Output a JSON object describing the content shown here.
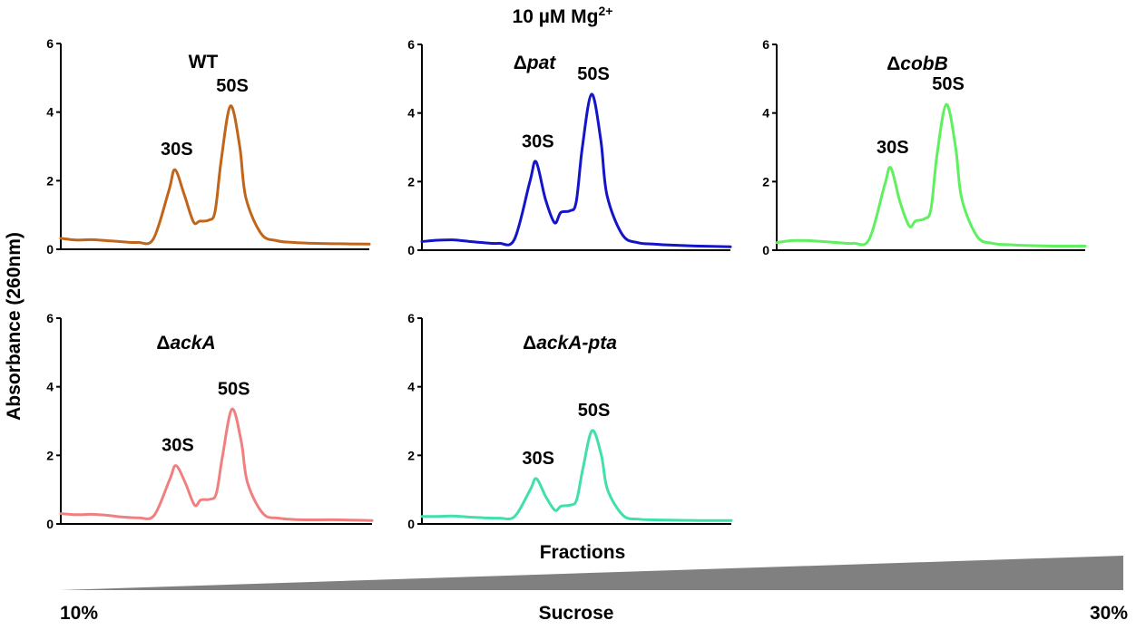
{
  "figure": {
    "condition_title": "10 µM Mg",
    "condition_superscript": "2+",
    "ylabel": "Absorbance (260nm)",
    "xlabel": "Fractions",
    "gradient": {
      "label": "Sucrose",
      "start_label": "10%",
      "end_label": "30%",
      "start_percent": 10,
      "end_percent": 30,
      "color": "#808080"
    }
  },
  "chart_data": [
    {
      "type": "line",
      "title_prefix": "",
      "title_italic": "WT",
      "color": "#C0651A",
      "ylim": [
        0,
        6
      ],
      "yticks": [
        0,
        2,
        4,
        6
      ],
      "xlabel": "Fractions",
      "ylabel": "Absorbance (260nm)",
      "x": [
        0,
        5,
        10,
        15,
        20,
        25,
        30,
        35,
        37,
        40,
        43,
        45,
        48,
        50,
        52,
        55,
        58,
        60,
        65,
        70,
        75,
        80,
        90,
        100
      ],
      "y": [
        0.32,
        0.27,
        0.28,
        0.25,
        0.22,
        0.2,
        0.3,
        1.7,
        2.32,
        1.6,
        0.8,
        0.82,
        0.85,
        1.1,
        2.6,
        4.18,
        3.0,
        1.5,
        0.45,
        0.25,
        0.2,
        0.18,
        0.16,
        0.15
      ],
      "annotations": [
        {
          "text": "30S",
          "x": 37,
          "y": 2.32
        },
        {
          "text": "50S",
          "x": 55,
          "y": 4.18
        }
      ]
    },
    {
      "type": "line",
      "title_prefix": "Δ",
      "title_italic": "pat",
      "color": "#1414C8",
      "ylim": [
        0,
        6
      ],
      "yticks": [
        0,
        2,
        4,
        6
      ],
      "xlabel": "Fractions",
      "ylabel": "Absorbance (260nm)",
      "x": [
        0,
        5,
        10,
        15,
        20,
        25,
        30,
        35,
        37,
        40,
        43,
        45,
        48,
        50,
        52,
        55,
        58,
        60,
        65,
        70,
        75,
        80,
        90,
        100
      ],
      "y": [
        0.25,
        0.29,
        0.3,
        0.26,
        0.22,
        0.2,
        0.32,
        2.0,
        2.58,
        1.5,
        0.8,
        1.1,
        1.15,
        1.4,
        3.0,
        4.55,
        3.2,
        1.6,
        0.45,
        0.22,
        0.18,
        0.15,
        0.12,
        0.1
      ],
      "annotations": [
        {
          "text": "30S",
          "x": 37,
          "y": 2.58
        },
        {
          "text": "50S",
          "x": 55,
          "y": 4.55
        }
      ]
    },
    {
      "type": "line",
      "title_prefix": "Δ",
      "title_italic": "cobB",
      "color": "#5EF05E",
      "ylim": [
        0,
        6
      ],
      "yticks": [
        0,
        2,
        4,
        6
      ],
      "xlabel": "Fractions",
      "ylabel": "Absorbance (260nm)",
      "x": [
        0,
        5,
        10,
        15,
        20,
        25,
        30,
        35,
        37,
        40,
        43,
        45,
        48,
        50,
        52,
        55,
        58,
        60,
        65,
        70,
        75,
        80,
        90,
        100
      ],
      "y": [
        0.22,
        0.28,
        0.28,
        0.25,
        0.22,
        0.2,
        0.32,
        1.9,
        2.4,
        1.4,
        0.7,
        0.85,
        0.92,
        1.2,
        2.8,
        4.25,
        3.0,
        1.5,
        0.4,
        0.2,
        0.16,
        0.14,
        0.12,
        0.12
      ],
      "annotations": [
        {
          "text": "30S",
          "x": 37,
          "y": 2.4
        },
        {
          "text": "50S",
          "x": 55,
          "y": 4.25
        }
      ]
    },
    {
      "type": "line",
      "title_prefix": "Δ",
      "title_italic": "ackA",
      "color": "#F08080",
      "ylim": [
        0,
        6
      ],
      "yticks": [
        0,
        2,
        4,
        6
      ],
      "xlabel": "Fractions",
      "ylabel": "Absorbance (260nm)",
      "x": [
        0,
        5,
        10,
        15,
        20,
        25,
        30,
        35,
        37,
        40,
        43,
        45,
        48,
        50,
        52,
        55,
        58,
        60,
        65,
        70,
        75,
        80,
        90,
        100
      ],
      "y": [
        0.3,
        0.27,
        0.28,
        0.25,
        0.2,
        0.18,
        0.25,
        1.3,
        1.7,
        1.2,
        0.55,
        0.7,
        0.72,
        0.9,
        2.0,
        3.35,
        2.4,
        1.2,
        0.3,
        0.17,
        0.13,
        0.12,
        0.12,
        0.1
      ],
      "annotations": [
        {
          "text": "30S",
          "x": 37,
          "y": 1.7
        },
        {
          "text": "50S",
          "x": 55,
          "y": 3.35
        }
      ]
    },
    {
      "type": "line",
      "title_prefix": "Δ",
      "title_italic": "ackA-pta",
      "color": "#40E0A8",
      "ylim": [
        0,
        6
      ],
      "yticks": [
        0,
        2,
        4,
        6
      ],
      "xlabel": "Fractions",
      "ylabel": "Absorbance (260nm)",
      "x": [
        0,
        5,
        10,
        15,
        20,
        25,
        30,
        35,
        37,
        40,
        43,
        45,
        48,
        50,
        52,
        55,
        58,
        60,
        65,
        70,
        75,
        80,
        90,
        100
      ],
      "y": [
        0.22,
        0.22,
        0.23,
        0.2,
        0.18,
        0.17,
        0.22,
        1.0,
        1.32,
        0.8,
        0.4,
        0.52,
        0.55,
        0.7,
        1.6,
        2.72,
        2.0,
        1.0,
        0.25,
        0.14,
        0.12,
        0.11,
        0.1,
        0.1
      ],
      "annotations": [
        {
          "text": "30S",
          "x": 37,
          "y": 1.32
        },
        {
          "text": "50S",
          "x": 55,
          "y": 2.72
        }
      ]
    }
  ]
}
